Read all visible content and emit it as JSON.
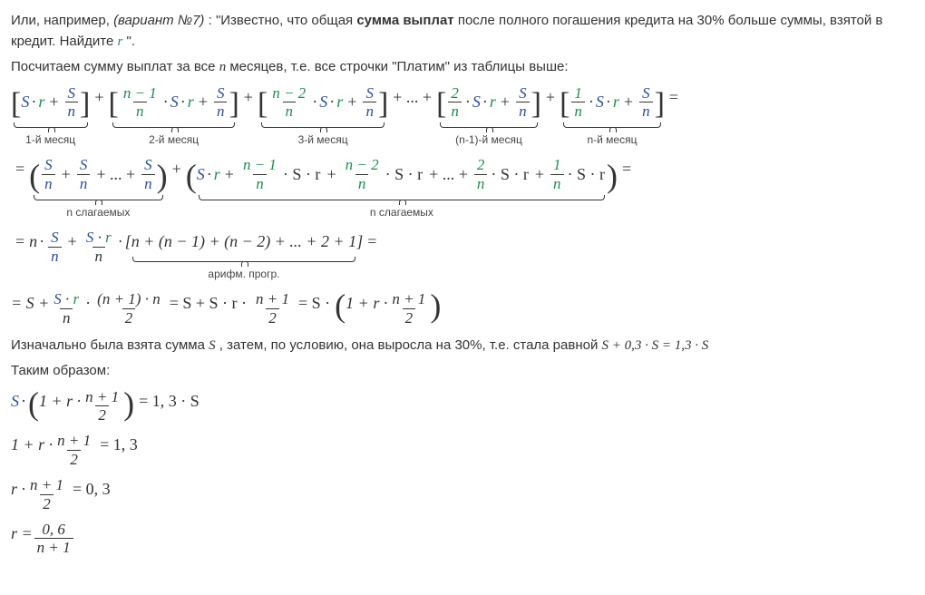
{
  "p1a": "Или, например, ",
  "p1b": "(вариант №7)",
  "p1c": ": \"Известно, что общая ",
  "p1d": "сумма выплат",
  "p1e": " после полного погашения кредита на 30% больше суммы, взятой в кредит. Найдите ",
  "p1r": "r",
  "p1f": "\".",
  "p2a": "Посчитаем сумму выплат за все ",
  "p2n": "n",
  "p2b": " месяцев, т.е. все строчки \"Платим\" из таблицы выше:",
  "lab": {
    "m1": "1-й месяц",
    "m2": "2-й месяц",
    "m3": "3-й месяц",
    "mnm1": "(n-1)-й месяц",
    "mn": "n-й месяц",
    "nsum": "n слагаемых",
    "ar": "арифм. прогр."
  },
  "p3a": "Изначально была взята сумма ",
  "p3S": "S",
  "p3b": ", затем, по условию, она выросла на 30%, т.е. стала равной ",
  "p3eq": "S + 0,3 · S = 1,3 · S",
  "p4": "Таким образом:",
  "sym": {
    "S": "S",
    "r": "r",
    "n": "n",
    "nm1": "n − 1",
    "nm2": "n − 2",
    "one": "1",
    "two": "2",
    "np1": "n + 1",
    "np1n": "(n + 1) · n",
    "zp6": "0, 6",
    "np1d": "n + 1"
  },
  "txt": {
    "dot": "·",
    "plus": "+",
    "eq": "=",
    "dots": "+ ... +",
    "Sr": "S · r",
    "cdotSr": "· S · r",
    "br": "[n + (n − 1) + (n − 2) + ... + 2 + 1]",
    "eqS": "= S +",
    "eqS2": "= S + S · r ·",
    "Sdot": "= S ·",
    "one_r": "1 + r ·",
    "v13S": "= 1, 3 · S",
    "v13": "= 1, 3",
    "v03": "= 0, 3",
    "rdot": "r ·",
    "req": "r ="
  }
}
